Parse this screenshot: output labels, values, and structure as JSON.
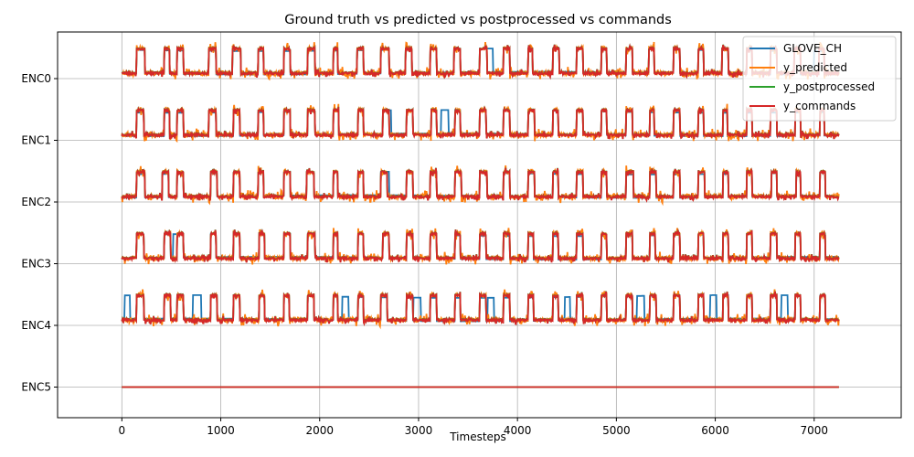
{
  "chart_data": {
    "type": "line",
    "title": "Ground truth vs predicted vs postprocessed vs commands",
    "xlabel": "Timesteps",
    "ylabel": "",
    "xlim": [
      -650,
      7880
    ],
    "x_ticks": [
      0,
      1000,
      2000,
      3000,
      4000,
      5000,
      6000,
      7000
    ],
    "x_tick_labels": [
      "0",
      "1000",
      "2000",
      "3000",
      "4000",
      "5000",
      "6000",
      "7000"
    ],
    "y_tick_labels": [
      "ENC0",
      "ENC1",
      "ENC2",
      "ENC3",
      "ENC4",
      "ENC5"
    ],
    "x_max": 7250,
    "grid": true,
    "legend_position": "top-right",
    "series": [
      {
        "name": "GLOVE_CH",
        "color": "#1f77b4"
      },
      {
        "name": "y_predicted",
        "color": "#ff7f0e"
      },
      {
        "name": "y_postprocessed",
        "color": "#2ca02c"
      },
      {
        "name": "y_commands",
        "color": "#d62728"
      }
    ],
    "channels": [
      {
        "label": "ENC0",
        "pulses": [
          [
            150,
            230
          ],
          [
            430,
            480
          ],
          [
            560,
            620
          ],
          [
            880,
            950
          ],
          [
            1120,
            1200
          ],
          [
            1380,
            1430
          ],
          [
            1640,
            1700
          ],
          [
            1880,
            1950
          ],
          [
            2140,
            2180
          ],
          [
            2380,
            2440
          ],
          [
            2620,
            2700
          ],
          [
            2870,
            2930
          ],
          [
            3120,
            3180
          ],
          [
            3360,
            3420
          ],
          [
            3620,
            3690
          ],
          [
            3860,
            3920
          ],
          [
            4110,
            4150
          ],
          [
            4360,
            4420
          ],
          [
            4600,
            4660
          ],
          [
            4850,
            4900
          ],
          [
            5100,
            5160
          ],
          [
            5330,
            5380
          ],
          [
            5580,
            5640
          ],
          [
            5830,
            5880
          ],
          [
            6070,
            6130
          ],
          [
            6320,
            6370
          ],
          [
            6560,
            6620
          ],
          [
            6800,
            6860
          ],
          [
            7050,
            7100
          ]
        ],
        "blue_extra": [
          [
            3650,
            3750
          ],
          [
            7000,
            7050
          ]
        ]
      },
      {
        "label": "ENC1",
        "pulses": [
          [
            150,
            220
          ],
          [
            430,
            480
          ],
          [
            560,
            620
          ],
          [
            880,
            950
          ],
          [
            1130,
            1190
          ],
          [
            1380,
            1430
          ],
          [
            1640,
            1700
          ],
          [
            1880,
            1950
          ],
          [
            2140,
            2190
          ],
          [
            2390,
            2440
          ],
          [
            2640,
            2700
          ],
          [
            2880,
            2940
          ],
          [
            3130,
            3180
          ],
          [
            3370,
            3420
          ],
          [
            3620,
            3680
          ],
          [
            3860,
            3920
          ],
          [
            4110,
            4170
          ],
          [
            4360,
            4410
          ],
          [
            4600,
            4660
          ],
          [
            4850,
            4900
          ],
          [
            5100,
            5160
          ],
          [
            5340,
            5380
          ],
          [
            5580,
            5640
          ],
          [
            5830,
            5880
          ],
          [
            6080,
            6120
          ],
          [
            6320,
            6370
          ],
          [
            6560,
            6620
          ],
          [
            6810,
            6860
          ],
          [
            7060,
            7100
          ]
        ],
        "blue_extra": [
          [
            2640,
            2720
          ],
          [
            3230,
            3300
          ]
        ]
      },
      {
        "label": "ENC2",
        "pulses": [
          [
            150,
            230
          ],
          [
            410,
            470
          ],
          [
            560,
            620
          ],
          [
            900,
            960
          ],
          [
            1130,
            1190
          ],
          [
            1380,
            1430
          ],
          [
            1640,
            1700
          ],
          [
            1870,
            1940
          ],
          [
            2140,
            2180
          ],
          [
            2390,
            2440
          ],
          [
            2620,
            2680
          ],
          [
            2880,
            2940
          ],
          [
            3120,
            3180
          ],
          [
            3370,
            3430
          ],
          [
            3620,
            3690
          ],
          [
            3860,
            3920
          ],
          [
            4110,
            4170
          ],
          [
            4360,
            4410
          ],
          [
            4600,
            4660
          ],
          [
            4850,
            4900
          ],
          [
            5100,
            5170
          ],
          [
            5340,
            5400
          ],
          [
            5580,
            5640
          ],
          [
            5830,
            5890
          ],
          [
            6080,
            6130
          ],
          [
            6320,
            6370
          ],
          [
            6570,
            6620
          ],
          [
            6820,
            6860
          ],
          [
            7060,
            7110
          ]
        ],
        "blue_extra": [
          [
            2640,
            2700
          ]
        ]
      },
      {
        "label": "ENC3",
        "pulses": [
          [
            150,
            220
          ],
          [
            430,
            490
          ],
          [
            560,
            620
          ],
          [
            900,
            950
          ],
          [
            1130,
            1190
          ],
          [
            1390,
            1440
          ],
          [
            1640,
            1700
          ],
          [
            1880,
            1950
          ],
          [
            2140,
            2180
          ],
          [
            2390,
            2440
          ],
          [
            2640,
            2700
          ],
          [
            2880,
            2940
          ],
          [
            3120,
            3180
          ],
          [
            3370,
            3420
          ],
          [
            3620,
            3680
          ],
          [
            3860,
            3920
          ],
          [
            4110,
            4160
          ],
          [
            4360,
            4410
          ],
          [
            4600,
            4660
          ],
          [
            4850,
            4900
          ],
          [
            5100,
            5160
          ],
          [
            5340,
            5390
          ],
          [
            5580,
            5640
          ],
          [
            5830,
            5880
          ],
          [
            6080,
            6130
          ],
          [
            6320,
            6370
          ],
          [
            6560,
            6620
          ],
          [
            6810,
            6860
          ],
          [
            7060,
            7110
          ]
        ],
        "blue_extra": [
          [
            520,
            580
          ]
        ]
      },
      {
        "label": "ENC4",
        "pulses": [
          [
            150,
            220
          ],
          [
            430,
            490
          ],
          [
            560,
            620
          ],
          [
            900,
            960
          ],
          [
            1130,
            1190
          ],
          [
            1390,
            1440
          ],
          [
            1640,
            1690
          ],
          [
            1880,
            1940
          ],
          [
            2140,
            2180
          ],
          [
            2390,
            2440
          ],
          [
            2620,
            2680
          ],
          [
            2880,
            2940
          ],
          [
            3120,
            3180
          ],
          [
            3370,
            3420
          ],
          [
            3620,
            3680
          ],
          [
            3860,
            3920
          ],
          [
            4110,
            4160
          ],
          [
            4360,
            4410
          ],
          [
            4600,
            4660
          ],
          [
            4850,
            4900
          ],
          [
            5100,
            5160
          ],
          [
            5340,
            5400
          ],
          [
            5580,
            5640
          ],
          [
            5830,
            5880
          ],
          [
            6080,
            6130
          ],
          [
            6320,
            6370
          ],
          [
            6560,
            6620
          ],
          [
            6810,
            6860
          ],
          [
            7060,
            7110
          ]
        ],
        "blue_extra": [
          [
            30,
            80
          ],
          [
            720,
            800
          ],
          [
            2230,
            2290
          ],
          [
            2950,
            3020
          ],
          [
            3700,
            3760
          ],
          [
            4480,
            4530
          ],
          [
            5210,
            5280
          ],
          [
            5950,
            6010
          ],
          [
            6670,
            6730
          ]
        ]
      },
      {
        "label": "ENC5",
        "pulses": [],
        "blue_extra": []
      }
    ]
  }
}
